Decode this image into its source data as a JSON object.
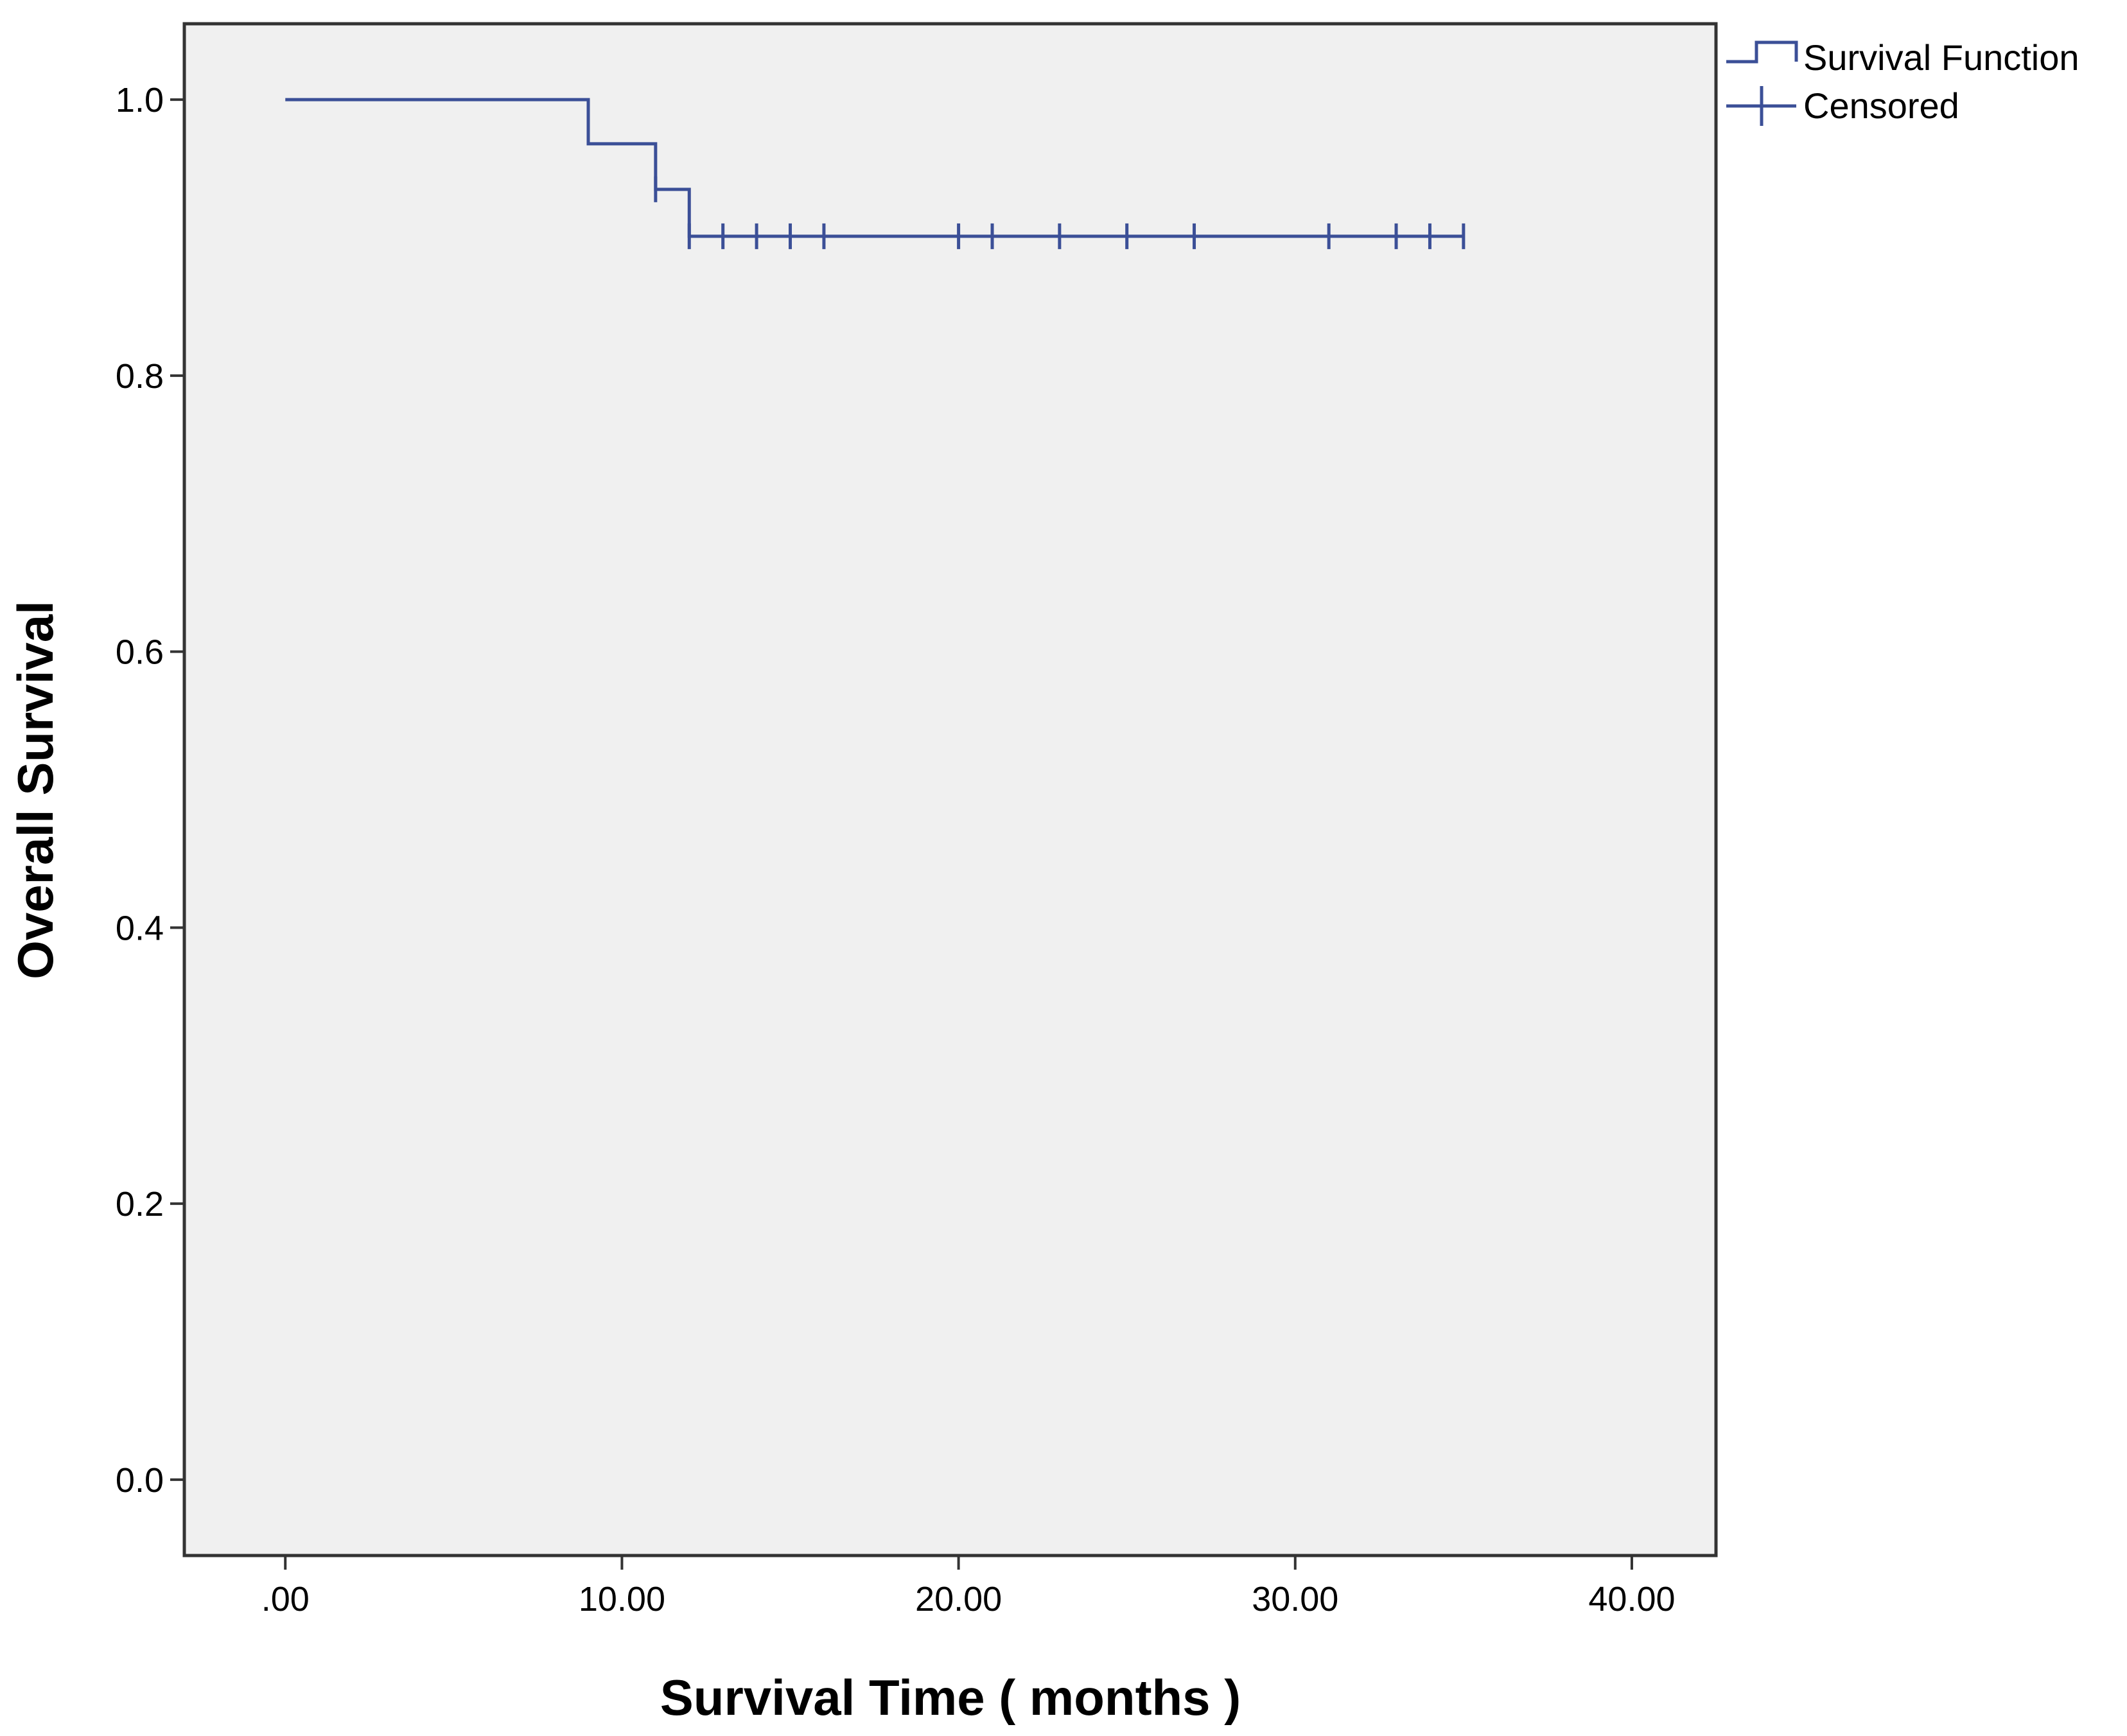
{
  "chart_data": {
    "type": "line",
    "subtype": "kaplan-meier-step",
    "xlabel": "Survival Time ( months )",
    "ylabel": "Overall Survival",
    "xlim": [
      -3.0,
      42.5
    ],
    "ylim": [
      -0.055,
      1.055
    ],
    "x_ticks": [
      0,
      10,
      20,
      30,
      40
    ],
    "x_tick_labels": [
      ".00",
      "10.00",
      "20.00",
      "30.00",
      "40.00"
    ],
    "y_ticks": [
      0,
      0.2,
      0.4,
      0.6,
      0.8,
      1.0
    ],
    "y_tick_labels": [
      "0.0",
      "0.2",
      "0.4",
      "0.6",
      "0.8",
      "1.0"
    ],
    "grid": false,
    "legend_position": "top-right, outside plot",
    "plot_background": "#f0f0f0",
    "series": [
      {
        "name": "Survival Function",
        "color": "#3b4f97",
        "steps": [
          {
            "x": 0,
            "y": 1.0
          },
          {
            "x": 9,
            "y": 0.968
          },
          {
            "x": 11,
            "y": 0.935
          },
          {
            "x": 12,
            "y": 0.901
          },
          {
            "x": 35,
            "y": 0.901
          }
        ]
      },
      {
        "name": "Censored",
        "color": "#3b4f97",
        "points": [
          {
            "x": 11,
            "y": 0.935
          },
          {
            "x": 12,
            "y": 0.901
          },
          {
            "x": 13,
            "y": 0.901
          },
          {
            "x": 14,
            "y": 0.901
          },
          {
            "x": 15,
            "y": 0.901
          },
          {
            "x": 16,
            "y": 0.901
          },
          {
            "x": 20,
            "y": 0.901
          },
          {
            "x": 21,
            "y": 0.901
          },
          {
            "x": 23,
            "y": 0.901
          },
          {
            "x": 25,
            "y": 0.901
          },
          {
            "x": 27,
            "y": 0.901
          },
          {
            "x": 31,
            "y": 0.901
          },
          {
            "x": 33,
            "y": 0.901
          },
          {
            "x": 34,
            "y": 0.901
          },
          {
            "x": 35,
            "y": 0.901
          }
        ]
      }
    ]
  }
}
